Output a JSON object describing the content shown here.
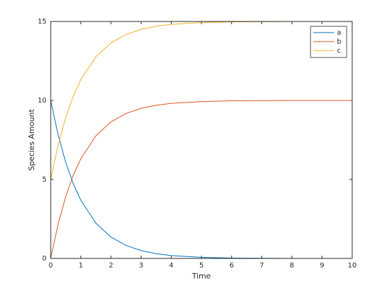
{
  "chart_data": {
    "type": "line",
    "xlabel": "Time",
    "ylabel": "Species Amount",
    "x": [
      0,
      0.25,
      0.5,
      0.75,
      1,
      1.5,
      2,
      2.5,
      3,
      3.5,
      4,
      5,
      6,
      7,
      8,
      9,
      10
    ],
    "series": [
      {
        "name": "a",
        "color": "#0072bd",
        "values": [
          10,
          7.79,
          6.07,
          4.72,
          3.68,
          2.23,
          1.35,
          0.82,
          0.5,
          0.3,
          0.18,
          0.07,
          0.02,
          0.01,
          0,
          0,
          0
        ]
      },
      {
        "name": "b",
        "color": "#d95319",
        "values": [
          0,
          2.21,
          3.93,
          5.28,
          6.32,
          7.77,
          8.65,
          9.18,
          9.5,
          9.7,
          9.82,
          9.93,
          9.98,
          9.99,
          10,
          10,
          10
        ]
      },
      {
        "name": "c",
        "color": "#edb120",
        "values": [
          5,
          7.21,
          8.93,
          10.28,
          11.32,
          12.77,
          13.65,
          14.18,
          14.5,
          14.7,
          14.82,
          14.93,
          14.98,
          14.99,
          15,
          15,
          15
        ]
      }
    ],
    "xlim": [
      0,
      10
    ],
    "xticks": [
      0,
      1,
      2,
      3,
      4,
      5,
      6,
      7,
      8,
      9,
      10
    ],
    "ylim": [
      0,
      15
    ],
    "yticks": [
      0,
      5,
      10,
      15
    ],
    "legend": "top-right"
  }
}
